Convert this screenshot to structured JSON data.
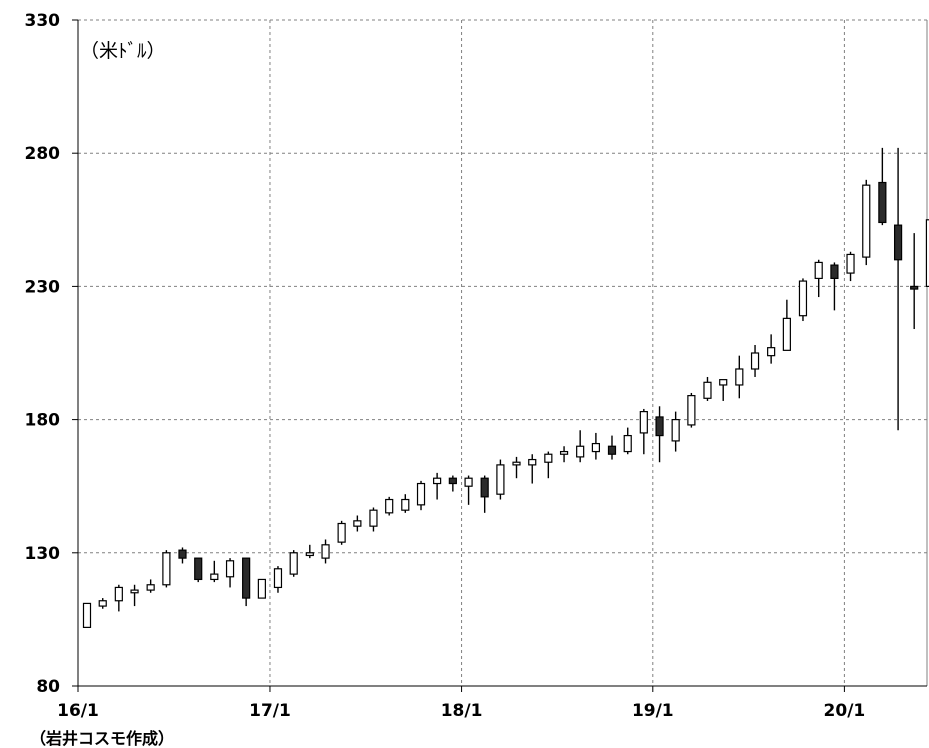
{
  "chart_data": {
    "type": "candlestick",
    "unit_label": "（米ﾄﾞﾙ）",
    "source_note": "（岩井コスモ作成）",
    "ylim": [
      80,
      330
    ],
    "yticks": [
      "330",
      "280",
      "230",
      "180",
      "130",
      "80"
    ],
    "ytick_values": [
      330,
      280,
      230,
      180,
      130,
      80
    ],
    "xticks": [
      "16/1",
      "17/1",
      "18/1",
      "19/1",
      "20/1"
    ],
    "xtick_weeks": [
      0,
      52.3,
      104.5,
      156.6,
      208.8
    ],
    "grid": true,
    "up_color": "#ffffff",
    "down_color": "#2b2b2b",
    "line_color": "#000000",
    "grid_color": "#808080",
    "candles": [
      {
        "w": 0,
        "o": 102,
        "h": 111,
        "l": 102,
        "c": 111
      },
      {
        "w": 4.3,
        "o": 110,
        "h": 113,
        "l": 109,
        "c": 112
      },
      {
        "w": 8.7,
        "o": 112,
        "h": 118,
        "l": 108,
        "c": 117
      },
      {
        "w": 13,
        "o": 115,
        "h": 118,
        "l": 110,
        "c": 116
      },
      {
        "w": 17.4,
        "o": 116,
        "h": 120,
        "l": 115,
        "c": 118
      },
      {
        "w": 21.7,
        "o": 118,
        "h": 131,
        "l": 117,
        "c": 130
      },
      {
        "w": 26.1,
        "o": 131,
        "h": 132,
        "l": 126,
        "c": 128
      },
      {
        "w": 30.4,
        "o": 128,
        "h": 128,
        "l": 119,
        "c": 120
      },
      {
        "w": 34.8,
        "o": 120,
        "h": 127,
        "l": 119,
        "c": 122
      },
      {
        "w": 39.1,
        "o": 121,
        "h": 128,
        "l": 117,
        "c": 127
      },
      {
        "w": 43.5,
        "o": 128,
        "h": 128,
        "l": 110,
        "c": 113
      },
      {
        "w": 47.8,
        "o": 113,
        "h": 120,
        "l": 113,
        "c": 120
      },
      {
        "w": 52.2,
        "o": 117,
        "h": 125,
        "l": 115,
        "c": 124
      },
      {
        "w": 56.5,
        "o": 122,
        "h": 131,
        "l": 121,
        "c": 130
      },
      {
        "w": 60.9,
        "o": 129,
        "h": 133,
        "l": 128,
        "c": 130
      },
      {
        "w": 65.2,
        "o": 128,
        "h": 135,
        "l": 126,
        "c": 133
      },
      {
        "w": 69.6,
        "o": 134,
        "h": 142,
        "l": 133,
        "c": 141
      },
      {
        "w": 73.9,
        "o": 140,
        "h": 144,
        "l": 138,
        "c": 142
      },
      {
        "w": 78.3,
        "o": 140,
        "h": 147,
        "l": 138,
        "c": 146
      },
      {
        "w": 82.6,
        "o": 145,
        "h": 151,
        "l": 144,
        "c": 150
      },
      {
        "w": 87,
        "o": 146,
        "h": 152,
        "l": 145,
        "c": 150
      },
      {
        "w": 91.3,
        "o": 148,
        "h": 157,
        "l": 146,
        "c": 156
      },
      {
        "w": 95.7,
        "o": 156,
        "h": 160,
        "l": 150,
        "c": 158
      },
      {
        "w": 100,
        "o": 158,
        "h": 159,
        "l": 153,
        "c": 156
      },
      {
        "w": 104.3,
        "o": 155,
        "h": 159,
        "l": 148,
        "c": 158
      },
      {
        "w": 108.7,
        "o": 158,
        "h": 159,
        "l": 145,
        "c": 151
      },
      {
        "w": 113,
        "o": 152,
        "h": 165,
        "l": 150,
        "c": 163
      },
      {
        "w": 117.4,
        "o": 163,
        "h": 166,
        "l": 158,
        "c": 164
      },
      {
        "w": 121.7,
        "o": 163,
        "h": 167,
        "l": 156,
        "c": 165
      },
      {
        "w": 126.1,
        "o": 164,
        "h": 168,
        "l": 158,
        "c": 167
      },
      {
        "w": 130.4,
        "o": 167,
        "h": 170,
        "l": 164,
        "c": 168
      },
      {
        "w": 134.8,
        "o": 166,
        "h": 176,
        "l": 164,
        "c": 170
      },
      {
        "w": 139.1,
        "o": 168,
        "h": 175,
        "l": 165,
        "c": 171
      },
      {
        "w": 143.5,
        "o": 170,
        "h": 174,
        "l": 165,
        "c": 167
      },
      {
        "w": 147.8,
        "o": 168,
        "h": 177,
        "l": 167,
        "c": 174
      },
      {
        "w": 152.2,
        "o": 175,
        "h": 184,
        "l": 167,
        "c": 183
      },
      {
        "w": 156.5,
        "o": 181,
        "h": 185,
        "l": 164,
        "c": 174
      },
      {
        "w": 160.9,
        "o": 172,
        "h": 183,
        "l": 168,
        "c": 180
      },
      {
        "w": 165.2,
        "o": 178,
        "h": 190,
        "l": 177,
        "c": 189
      },
      {
        "w": 169.6,
        "o": 188,
        "h": 196,
        "l": 187,
        "c": 194
      },
      {
        "w": 173.9,
        "o": 193,
        "h": 195,
        "l": 187,
        "c": 195
      },
      {
        "w": 178.3,
        "o": 193,
        "h": 204,
        "l": 188,
        "c": 199
      },
      {
        "w": 182.6,
        "o": 199,
        "h": 208,
        "l": 196,
        "c": 205
      },
      {
        "w": 187,
        "o": 204,
        "h": 212,
        "l": 201,
        "c": 207
      },
      {
        "w": 191.3,
        "o": 206,
        "h": 225,
        "l": 206,
        "c": 218
      },
      {
        "w": 195.7,
        "o": 219,
        "h": 233,
        "l": 217,
        "c": 232
      },
      {
        "w": 200,
        "o": 233,
        "h": 240,
        "l": 226,
        "c": 239
      },
      {
        "w": 204.3,
        "o": 238,
        "h": 239,
        "l": 221,
        "c": 233
      },
      {
        "w": 208.7,
        "o": 235,
        "h": 243,
        "l": 232,
        "c": 242
      },
      {
        "w": 213,
        "o": 241,
        "h": 270,
        "l": 238,
        "c": 268
      },
      {
        "w": 217.4,
        "o": 269,
        "h": 282,
        "l": 253,
        "c": 254
      },
      {
        "w": 221.7,
        "o": 253,
        "h": 282,
        "l": 176,
        "c": 240
      },
      {
        "w": 226.1,
        "o": 230,
        "h": 250,
        "l": 214,
        "c": 229
      },
      {
        "w": 230.4,
        "o": 230,
        "h": 256,
        "l": 223,
        "c": 255
      }
    ]
  }
}
